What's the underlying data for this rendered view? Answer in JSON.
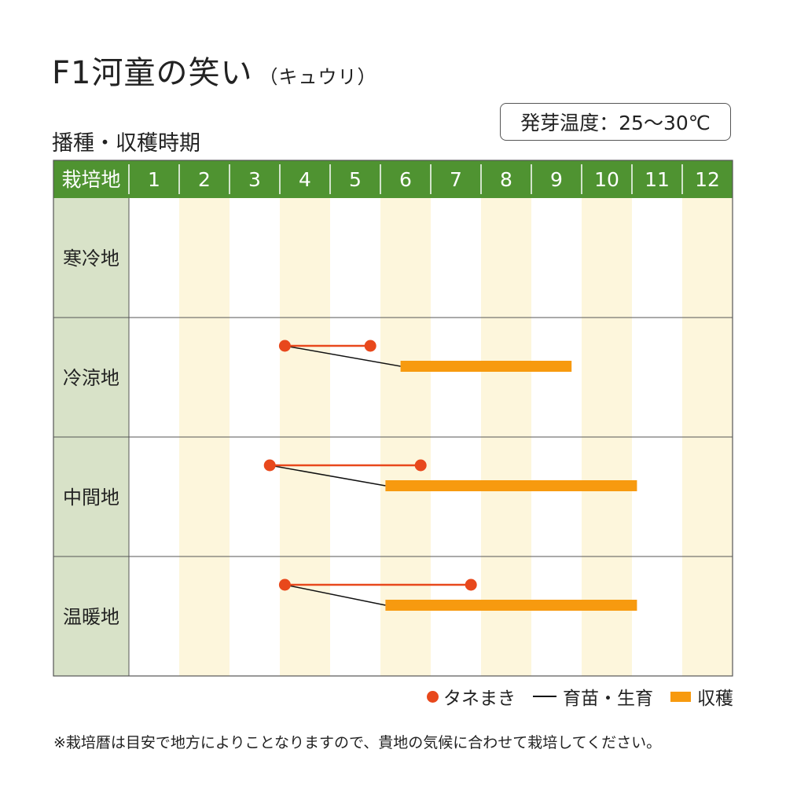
{
  "title": "F1河童の笑い",
  "subtitle": "（キュウリ）",
  "section_title": "播種・収穫時期",
  "germination_temp": "発芽温度：25〜30℃",
  "footnote": "※栽培暦は目安で地方によりことなりますので、貴地の気候に合わせて栽培してください。",
  "legend": {
    "sowing": "タネまき",
    "seedling": "育苗・生育",
    "harvest": "収穫"
  },
  "colors": {
    "header_bg": "#4f9331",
    "region_bg": "#d8e2c8",
    "stripe": "#fdf6dc",
    "sowing": "#e8481c",
    "seedling": "#111111",
    "harvest": "#f79a0f"
  },
  "chart_data": {
    "type": "table",
    "header_label": "栽培地",
    "months": [
      "1",
      "2",
      "3",
      "4",
      "5",
      "6",
      "7",
      "8",
      "9",
      "10",
      "11",
      "12"
    ],
    "rows": [
      {
        "region": "寒冷地",
        "sowing": null,
        "harvest": null
      },
      {
        "region": "冷涼地",
        "sowing": [
          4.1,
          5.8
        ],
        "harvest": [
          6.4,
          9.8
        ]
      },
      {
        "region": "中間地",
        "sowing": [
          3.8,
          6.8
        ],
        "harvest": [
          6.1,
          11.1
        ]
      },
      {
        "region": "温暖地",
        "sowing": [
          4.1,
          7.8
        ],
        "harvest": [
          6.1,
          11.1
        ]
      }
    ]
  }
}
